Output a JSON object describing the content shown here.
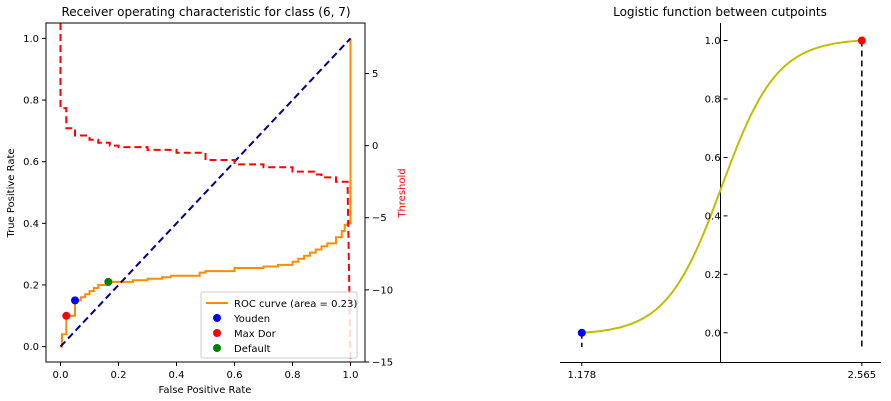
{
  "chart_data": [
    {
      "type": "line",
      "title": "Receiver operating characteristic for class (6, 7)",
      "xlabel": "False Positive Rate",
      "ylabel": "True Positive Rate",
      "y2label": "Threshold",
      "xlim": [
        -0.05,
        1.05
      ],
      "ylim": [
        -0.05,
        1.05
      ],
      "y2lim": [
        -15,
        8.5
      ],
      "xticks": [
        0.0,
        0.2,
        0.4,
        0.6,
        0.8,
        1.0
      ],
      "xtick_labels": [
        "0.0",
        "0.2",
        "0.4",
        "0.6",
        "0.8",
        "1.0"
      ],
      "yticks": [
        0.0,
        0.2,
        0.4,
        0.6,
        0.8,
        1.0
      ],
      "ytick_labels": [
        "0.0",
        "0.2",
        "0.4",
        "0.6",
        "0.8",
        "1.0"
      ],
      "y2ticks": [
        5,
        0,
        -5,
        -10,
        -15
      ],
      "y2tick_labels": [
        "5",
        "0",
        "−5",
        "−10",
        "−15"
      ],
      "legend_position": "lower right",
      "series": [
        {
          "name": "ROC curve (area = 0.23)",
          "color": "#ff8c00",
          "style": "step",
          "x": [
            0.0,
            0.005,
            0.005,
            0.02,
            0.02,
            0.05,
            0.05,
            0.07,
            0.07,
            0.085,
            0.085,
            0.1,
            0.1,
            0.115,
            0.115,
            0.13,
            0.13,
            0.165,
            0.165,
            0.2,
            0.2,
            0.25,
            0.25,
            0.3,
            0.3,
            0.35,
            0.35,
            0.38,
            0.38,
            0.45,
            0.48,
            0.48,
            0.5,
            0.5,
            0.6,
            0.6,
            0.7,
            0.7,
            0.75,
            0.75,
            0.8,
            0.8,
            0.82,
            0.82,
            0.84,
            0.84,
            0.86,
            0.86,
            0.88,
            0.88,
            0.9,
            0.9,
            0.92,
            0.92,
            0.95,
            0.95,
            0.97,
            0.97,
            0.98,
            0.98,
            0.99,
            0.99,
            1.0,
            1.0
          ],
          "y": [
            0.0,
            0.0,
            0.04,
            0.04,
            0.1,
            0.1,
            0.15,
            0.15,
            0.16,
            0.16,
            0.17,
            0.17,
            0.18,
            0.18,
            0.19,
            0.19,
            0.2,
            0.2,
            0.21,
            0.21,
            0.21,
            0.21,
            0.215,
            0.215,
            0.22,
            0.22,
            0.225,
            0.225,
            0.23,
            0.23,
            0.23,
            0.24,
            0.24,
            0.245,
            0.245,
            0.255,
            0.255,
            0.26,
            0.26,
            0.265,
            0.265,
            0.275,
            0.275,
            0.285,
            0.285,
            0.295,
            0.295,
            0.305,
            0.305,
            0.315,
            0.315,
            0.325,
            0.325,
            0.335,
            0.335,
            0.355,
            0.355,
            0.375,
            0.375,
            0.395,
            0.395,
            0.4,
            0.4,
            1.0
          ]
        },
        {
          "name": "",
          "color": "#000080",
          "style": "dashed",
          "x": [
            0.0,
            1.0
          ],
          "y": [
            0.0,
            1.0
          ]
        },
        {
          "name": "",
          "color": "#ff0000",
          "style": "dashed-step",
          "axis": "right",
          "x": [
            0.0,
            0.0,
            0.02,
            0.02,
            0.05,
            0.05,
            0.1,
            0.1,
            0.13,
            0.13,
            0.17,
            0.17,
            0.2,
            0.2,
            0.3,
            0.3,
            0.4,
            0.4,
            0.5,
            0.5,
            0.6,
            0.6,
            0.7,
            0.7,
            0.8,
            0.8,
            0.88,
            0.88,
            0.9,
            0.9,
            0.95,
            0.95,
            0.99,
            0.99,
            1.0
          ],
          "y": [
            8.5,
            2.6,
            2.6,
            1.2,
            1.2,
            0.7,
            0.7,
            0.4,
            0.4,
            0.2,
            0.2,
            0.0,
            0.0,
            -0.1,
            -0.1,
            -0.3,
            -0.3,
            -0.5,
            -0.5,
            -1.0,
            -1.0,
            -1.3,
            -1.3,
            -1.5,
            -1.5,
            -1.8,
            -1.8,
            -2.0,
            -2.0,
            -2.2,
            -2.2,
            -2.5,
            -2.5,
            -2.7,
            -15
          ]
        }
      ],
      "markers": [
        {
          "name": "Youden",
          "color": "#0000ff",
          "x": 0.05,
          "y": 0.15
        },
        {
          "name": "Max Dor",
          "color": "#ff0000",
          "x": 0.02,
          "y": 0.1
        },
        {
          "name": "Default",
          "color": "#008000",
          "x": 0.165,
          "y": 0.21
        }
      ]
    },
    {
      "type": "line",
      "title": "Logistic function between cutpoints",
      "xlabel": "",
      "ylabel": "",
      "yticks": [
        0.0,
        0.2,
        0.4,
        0.6,
        0.8,
        1.0
      ],
      "ytick_labels": [
        "0.0",
        "0.2",
        "0.4",
        "0.6",
        "0.8",
        "1.0"
      ],
      "xtick_labels": [
        "1.178",
        "2.565"
      ],
      "xlim": [
        1.07,
        2.66
      ],
      "ylim": [
        -0.1,
        1.06
      ],
      "yaxis_at_x": 1.9,
      "curve_color": "#bfbf00",
      "curve": {
        "x_start": 1.178,
        "x_end": 2.565,
        "x_mid": 1.871,
        "steepness": 7.3
      },
      "endpoints": [
        {
          "x": 1.178,
          "y": 0.0,
          "color": "#0000ff"
        },
        {
          "x": 2.565,
          "y": 1.0,
          "color": "#ff0000"
        }
      ]
    }
  ]
}
